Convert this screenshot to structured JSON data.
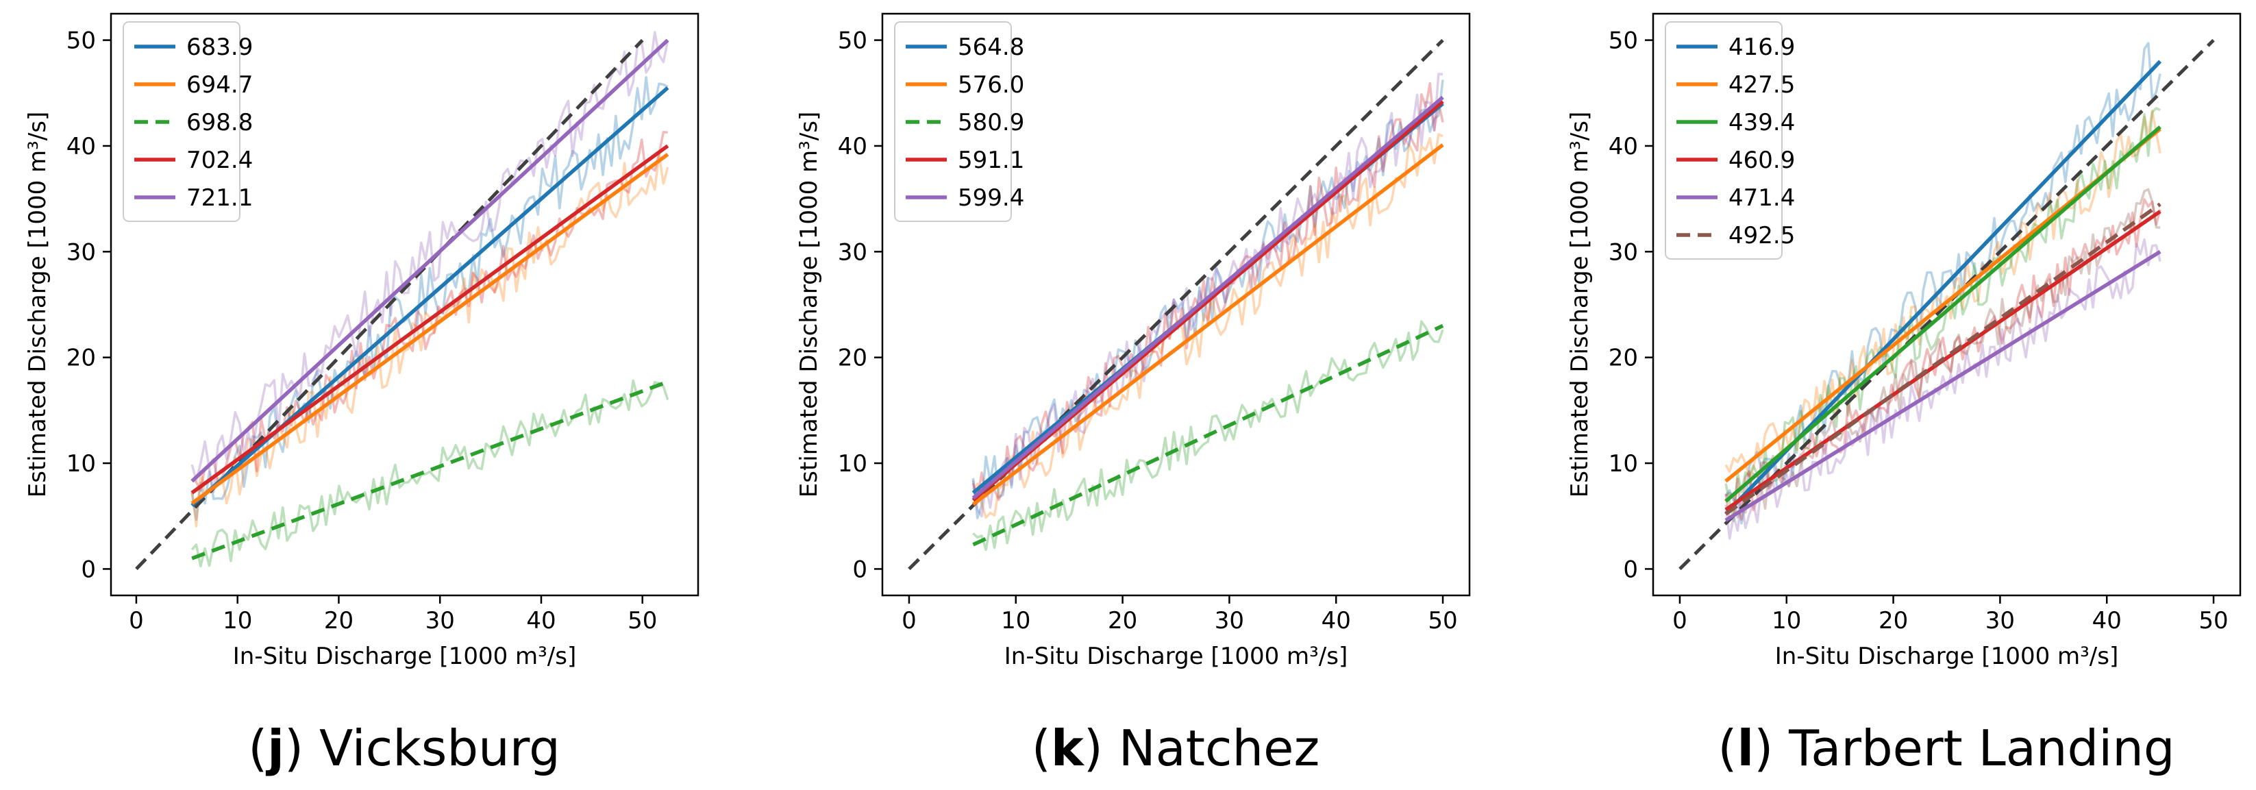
{
  "figure": {
    "colors": {
      "blue": "#1f77b4",
      "orange": "#ff7f0e",
      "green": "#2ca02c",
      "red": "#d62728",
      "purple": "#9467bd",
      "brown": "#8c564b",
      "identity": "#404040"
    }
  },
  "chart_data": [
    {
      "type": "line",
      "panel_letter": "j",
      "station": "Vicksburg",
      "xlabel": "In-Situ Discharge [1000 m³/s]",
      "ylabel": "Estimated Discharge [1000 m³/s]",
      "xlim": [
        -2.5,
        55.5
      ],
      "ylim": [
        -2.5,
        52.5
      ],
      "xticks": [
        0,
        10,
        20,
        30,
        40,
        50
      ],
      "yticks": [
        0,
        10,
        20,
        30,
        40,
        50
      ],
      "identity_line": {
        "x": [
          0,
          50
        ],
        "y": [
          0,
          50
        ],
        "style": "dashed"
      },
      "legend_location": "upper left",
      "series": [
        {
          "name": "683.9",
          "color": "blue",
          "dashed": false,
          "fit": {
            "x": [
              5.5,
              52.5
            ],
            "y": [
              6.0,
              45.5
            ]
          }
        },
        {
          "name": "694.7",
          "color": "orange",
          "dashed": false,
          "fit": {
            "x": [
              5.5,
              52.5
            ],
            "y": [
              6.2,
              39.2
            ]
          }
        },
        {
          "name": "698.8",
          "color": "green",
          "dashed": true,
          "fit": {
            "x": [
              5.5,
              52.5
            ],
            "y": [
              1.0,
              17.7
            ]
          }
        },
        {
          "name": "702.4",
          "color": "red",
          "dashed": false,
          "fit": {
            "x": [
              5.5,
              52.5
            ],
            "y": [
              7.2,
              40.0
            ]
          }
        },
        {
          "name": "721.1",
          "color": "purple",
          "dashed": false,
          "fit": {
            "x": [
              5.5,
              52.5
            ],
            "y": [
              8.3,
              50.0
            ]
          }
        }
      ]
    },
    {
      "type": "line",
      "panel_letter": "k",
      "station": "Natchez",
      "xlabel": "In-Situ Discharge [1000 m³/s]",
      "ylabel": "Estimated Discharge [1000 m³/s]",
      "xlim": [
        -2.5,
        52.5
      ],
      "ylim": [
        -2.5,
        52.5
      ],
      "xticks": [
        0,
        10,
        20,
        30,
        40,
        50
      ],
      "yticks": [
        0,
        10,
        20,
        30,
        40,
        50
      ],
      "identity_line": {
        "x": [
          0,
          50
        ],
        "y": [
          0,
          50
        ],
        "style": "dashed"
      },
      "legend_location": "upper left",
      "series": [
        {
          "name": "564.8",
          "color": "blue",
          "dashed": false,
          "fit": {
            "x": [
              6,
              50
            ],
            "y": [
              7.2,
              44.0
            ]
          }
        },
        {
          "name": "576.0",
          "color": "orange",
          "dashed": false,
          "fit": {
            "x": [
              6,
              50
            ],
            "y": [
              6.1,
              40.1
            ]
          }
        },
        {
          "name": "580.9",
          "color": "green",
          "dashed": true,
          "fit": {
            "x": [
              6,
              50
            ],
            "y": [
              2.3,
              23.0
            ]
          }
        },
        {
          "name": "591.1",
          "color": "red",
          "dashed": false,
          "fit": {
            "x": [
              6,
              50
            ],
            "y": [
              6.5,
              44.2
            ]
          }
        },
        {
          "name": "599.4",
          "color": "purple",
          "dashed": false,
          "fit": {
            "x": [
              6,
              50
            ],
            "y": [
              6.7,
              44.6
            ]
          }
        }
      ]
    },
    {
      "type": "line",
      "panel_letter": "l",
      "station": "Tarbert Landing",
      "xlabel": "In-Situ Discharge [1000 m³/s]",
      "ylabel": "Estimated Discharge [1000 m³/s]",
      "xlim": [
        -2.5,
        52.5
      ],
      "ylim": [
        -2.5,
        52.5
      ],
      "xticks": [
        0,
        10,
        20,
        30,
        40,
        50
      ],
      "yticks": [
        0,
        10,
        20,
        30,
        40,
        50
      ],
      "identity_line": {
        "x": [
          0,
          50
        ],
        "y": [
          0,
          50
        ],
        "style": "dashed"
      },
      "legend_location": "upper left",
      "series": [
        {
          "name": "416.9",
          "color": "blue",
          "dashed": false,
          "fit": {
            "x": [
              4.3,
              45
            ],
            "y": [
              5.2,
              48.0
            ]
          }
        },
        {
          "name": "427.5",
          "color": "orange",
          "dashed": false,
          "fit": {
            "x": [
              4.3,
              45
            ],
            "y": [
              8.3,
              41.6
            ]
          }
        },
        {
          "name": "439.4",
          "color": "green",
          "dashed": false,
          "fit": {
            "x": [
              4.3,
              45
            ],
            "y": [
              6.4,
              41.8
            ]
          }
        },
        {
          "name": "460.9",
          "color": "red",
          "dashed": false,
          "fit": {
            "x": [
              4.3,
              45
            ],
            "y": [
              5.6,
              33.8
            ]
          }
        },
        {
          "name": "471.4",
          "color": "purple",
          "dashed": false,
          "fit": {
            "x": [
              4.3,
              45
            ],
            "y": [
              4.6,
              30.0
            ]
          }
        },
        {
          "name": "492.5",
          "color": "brown",
          "dashed": true,
          "fit": {
            "x": [
              4.3,
              45
            ],
            "y": [
              5.2,
              34.5
            ]
          }
        }
      ]
    }
  ]
}
